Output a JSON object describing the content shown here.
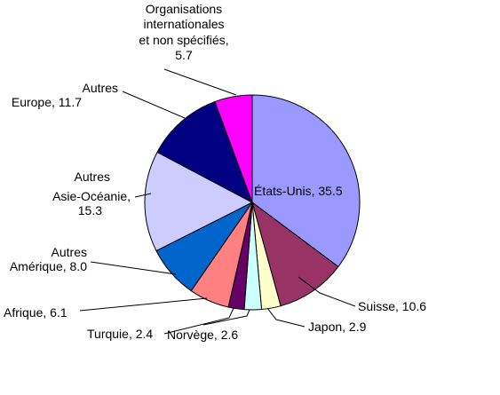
{
  "chart_data": {
    "type": "pie",
    "title": "",
    "start_angle_deg": 0,
    "direction": "clockwise",
    "slices": [
      {
        "label": "États-Unis, 35.5",
        "name": "États-Unis",
        "value": 35.5,
        "color": "#9999ff"
      },
      {
        "label": "Suisse, 10.6",
        "name": "Suisse",
        "value": 10.6,
        "color": "#993366"
      },
      {
        "label": "Japon, 2.9",
        "name": "Japon",
        "value": 2.9,
        "color": "#ffffcc"
      },
      {
        "label": "Norvège, 2.6",
        "name": "Norvège",
        "value": 2.6,
        "color": "#ccffff"
      },
      {
        "label": "Turquie, 2.4",
        "name": "Turquie",
        "value": 2.4,
        "color": "#660066"
      },
      {
        "label": "Afrique, 6.1",
        "name": "Afrique",
        "value": 6.1,
        "color": "#ff8080"
      },
      {
        "label": "Autres Amérique, 8.0",
        "name": "Autres Amérique",
        "value": 8.0,
        "color": "#0066cc"
      },
      {
        "label": "Autres Asie-Océanie, 15.3",
        "name": "Autres Asie-Océanie",
        "value": 15.3,
        "color": "#ccccff"
      },
      {
        "label": "Autres Europe, 11.7",
        "name": "Autres Europe",
        "value": 11.7,
        "color": "#000080"
      },
      {
        "label": "Organisations internationales et non spécifiés, 5.7",
        "name": "Organisations internationales et non spécifiés",
        "value": 5.7,
        "color": "#ff00ff"
      }
    ]
  }
}
